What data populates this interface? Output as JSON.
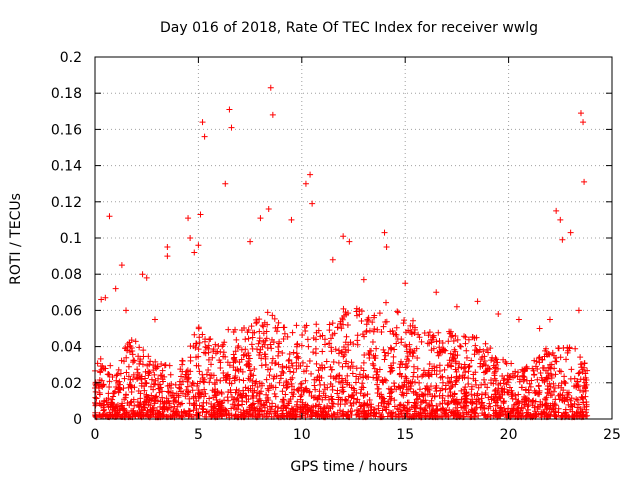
{
  "chart_data": {
    "type": "scatter",
    "title": "Day 016 of 2018, Rate Of TEC Index for receiver wwlg",
    "xlabel": "GPS time / hours",
    "ylabel": "ROTI / TECUs",
    "xlim": [
      0,
      25
    ],
    "ylim": [
      0,
      0.2
    ],
    "x_ticks": [
      "0",
      "5",
      "10",
      "15",
      "20",
      "25"
    ],
    "y_ticks": [
      "0",
      "0.02",
      "0.04",
      "0.06",
      "0.08",
      "0.1",
      "0.12",
      "0.14",
      "0.16",
      "0.18",
      "0.2"
    ],
    "grid": true,
    "marker": "+",
    "colors": {
      "points": "#ff0000",
      "grid": "#a0a0a0",
      "axis": "#000000"
    },
    "series": [
      {
        "name": "ROTI",
        "x": [
          0.3,
          0.5,
          0.7,
          1.0,
          1.3,
          1.5,
          2.3,
          2.5,
          2.9,
          3.5,
          3.5,
          4.5,
          4.6,
          4.8,
          5.0,
          5.1,
          5.2,
          5.3,
          6.3,
          6.5,
          6.6,
          7.5,
          8.0,
          8.4,
          8.5,
          8.6,
          9.5,
          10.2,
          10.4,
          10.5,
          11.5,
          12.0,
          12.3,
          13.0,
          14.0,
          14.1,
          15.0,
          16.5,
          17.5,
          18.5,
          19.5,
          20.5,
          21.5,
          22.0,
          22.3,
          22.5,
          22.6,
          23.0,
          23.4,
          23.5,
          23.6,
          23.65
        ],
        "y": [
          0.066,
          0.067,
          0.112,
          0.072,
          0.085,
          0.06,
          0.08,
          0.078,
          0.055,
          0.095,
          0.09,
          0.111,
          0.1,
          0.092,
          0.096,
          0.113,
          0.164,
          0.156,
          0.13,
          0.171,
          0.161,
          0.098,
          0.111,
          0.116,
          0.183,
          0.168,
          0.11,
          0.13,
          0.135,
          0.119,
          0.088,
          0.101,
          0.098,
          0.077,
          0.103,
          0.095,
          0.075,
          0.07,
          0.062,
          0.065,
          0.058,
          0.055,
          0.05,
          0.055,
          0.115,
          0.11,
          0.099,
          0.103,
          0.06,
          0.169,
          0.164,
          0.131
        ]
      }
    ]
  }
}
